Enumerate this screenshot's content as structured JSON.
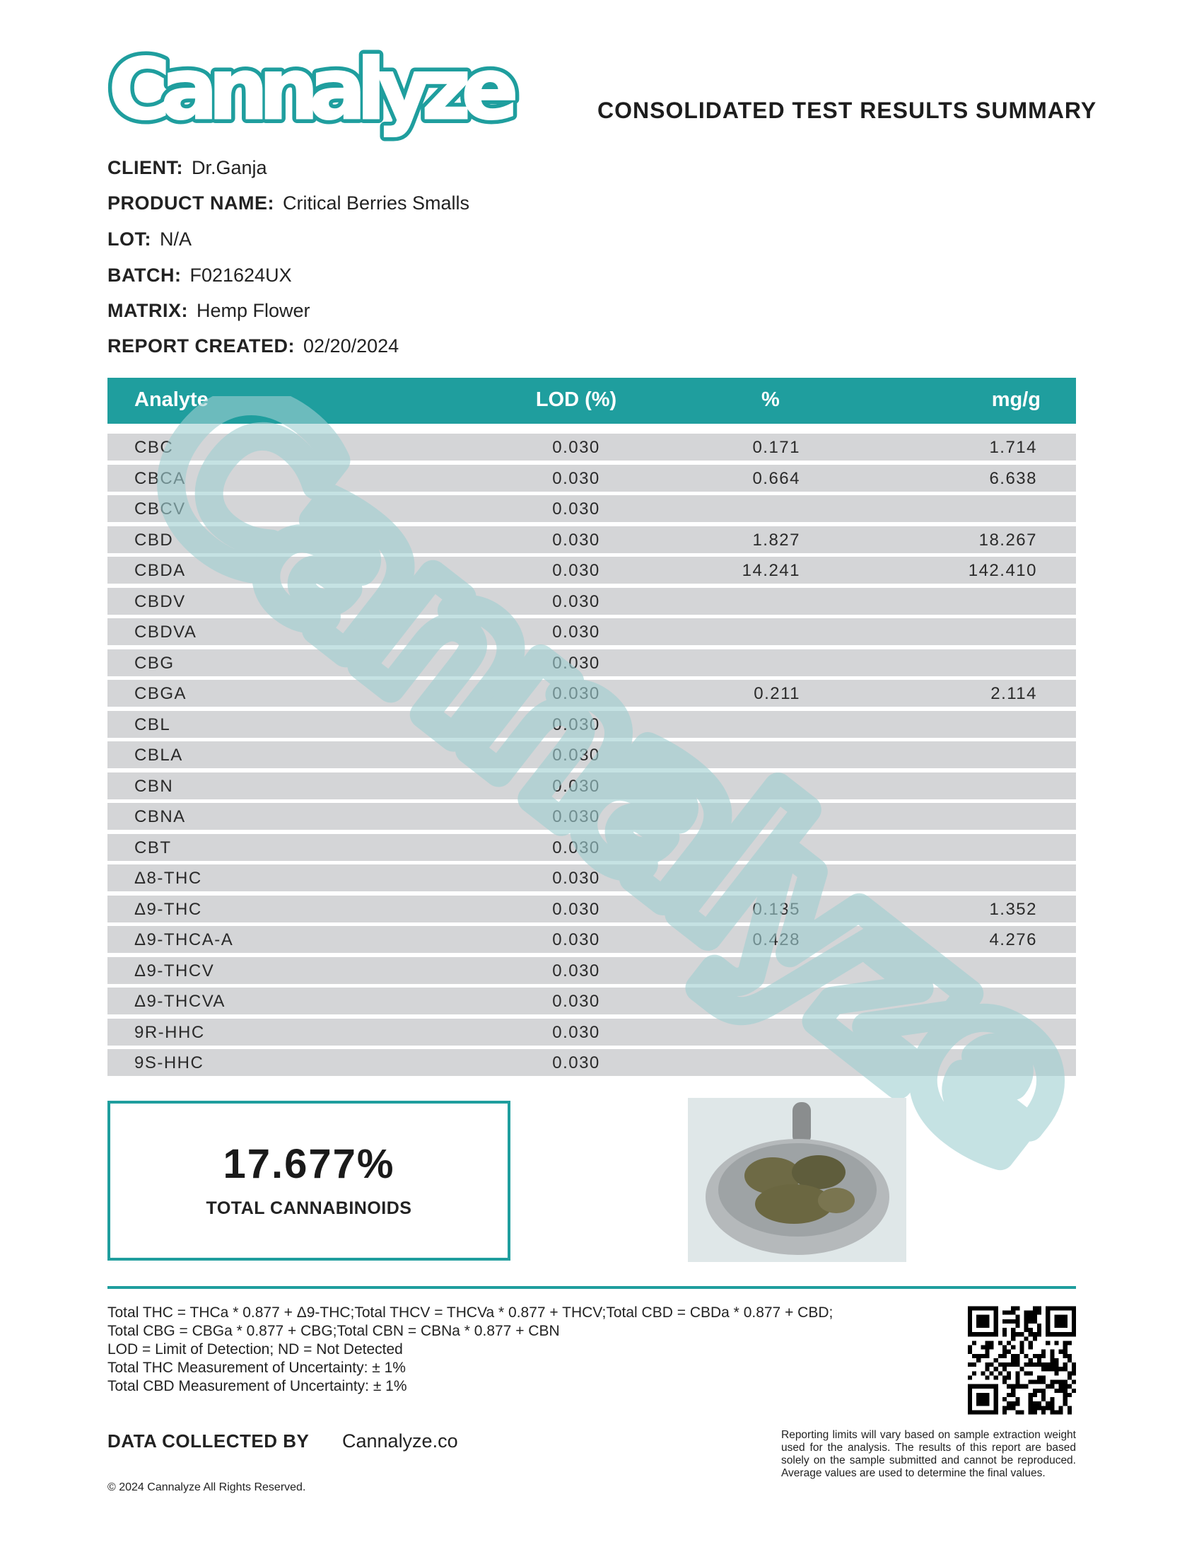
{
  "header": {
    "logo_text": "Cannalyze",
    "title": "CONSOLIDATED TEST RESULTS SUMMARY"
  },
  "meta": [
    {
      "label": "CLIENT:",
      "value": "Dr.Ganja"
    },
    {
      "label": "PRODUCT NAME:",
      "value": "Critical Berries Smalls"
    },
    {
      "label": "LOT:",
      "value": "N/A"
    },
    {
      "label": "BATCH:",
      "value": "F021624UX"
    },
    {
      "label": "MATRIX:",
      "value": "Hemp Flower"
    },
    {
      "label": "REPORT CREATED:",
      "value": "02/20/2024"
    }
  ],
  "table": {
    "columns": [
      "Analyte",
      "LOD (%)",
      "%",
      "mg/g"
    ],
    "rows": [
      {
        "analyte": "CBC",
        "lod": "0.030",
        "pct": "0.171",
        "mgg": "1.714"
      },
      {
        "analyte": "CBCA",
        "lod": "0.030",
        "pct": "0.664",
        "mgg": "6.638"
      },
      {
        "analyte": "CBCV",
        "lod": "0.030",
        "pct": "",
        "mgg": ""
      },
      {
        "analyte": "CBD",
        "lod": "0.030",
        "pct": "1.827",
        "mgg": "18.267"
      },
      {
        "analyte": "CBDA",
        "lod": "0.030",
        "pct": "14.241",
        "mgg": "142.410"
      },
      {
        "analyte": "CBDV",
        "lod": "0.030",
        "pct": "",
        "mgg": ""
      },
      {
        "analyte": "CBDVA",
        "lod": "0.030",
        "pct": "",
        "mgg": ""
      },
      {
        "analyte": "CBG",
        "lod": "0.030",
        "pct": "",
        "mgg": ""
      },
      {
        "analyte": "CBGA",
        "lod": "0.030",
        "pct": "0.211",
        "mgg": "2.114"
      },
      {
        "analyte": "CBL",
        "lod": "0.030",
        "pct": "",
        "mgg": ""
      },
      {
        "analyte": "CBLA",
        "lod": "0.030",
        "pct": "",
        "mgg": ""
      },
      {
        "analyte": "CBN",
        "lod": "0.030",
        "pct": "",
        "mgg": ""
      },
      {
        "analyte": "CBNA",
        "lod": "0.030",
        "pct": "",
        "mgg": ""
      },
      {
        "analyte": "CBT",
        "lod": "0.030",
        "pct": "",
        "mgg": ""
      },
      {
        "analyte": "Δ8-THC",
        "lod": "0.030",
        "pct": "",
        "mgg": ""
      },
      {
        "analyte": "Δ9-THC",
        "lod": "0.030",
        "pct": "0.135",
        "mgg": "1.352"
      },
      {
        "analyte": "Δ9-THCA-A",
        "lod": "0.030",
        "pct": "0.428",
        "mgg": "4.276"
      },
      {
        "analyte": "Δ9-THCV",
        "lod": "0.030",
        "pct": "",
        "mgg": ""
      },
      {
        "analyte": "Δ9-THCVA",
        "lod": "0.030",
        "pct": "",
        "mgg": ""
      },
      {
        "analyte": "9R-HHC",
        "lod": "0.030",
        "pct": "",
        "mgg": ""
      },
      {
        "analyte": "9S-HHC",
        "lod": "0.030",
        "pct": "",
        "mgg": ""
      }
    ]
  },
  "total": {
    "value": "17.677%",
    "label": "TOTAL CANNABINOIDS"
  },
  "footnotes": [
    "Total THC = THCa * 0.877 + Δ9-THC;Total THCV = THCVa * 0.877 + THCV;Total CBD = CBDa * 0.877 + CBD;",
    "Total CBG = CBGa * 0.877 + CBG;Total CBN = CBNa * 0.877 + CBN",
    "LOD = Limit of Detection; ND = Not Detected",
    "Total THC Measurement of Uncertainty: ± 1%",
    "Total CBD Measurement of Uncertainty: ± 1%"
  ],
  "footer": {
    "data_collected_label": "DATA COLLECTED BY",
    "data_collected_value": "Cannalyze.co",
    "copyright": "© 2024 Cannalyze All Rights Reserved.",
    "disclaimer": "Reporting limits will vary based on sample extraction weight used for the analysis. The results of this report are based solely on the sample submitted and cannot be reproduced. Average values are used to determine the final values."
  },
  "colors": {
    "brand": "#1f9e9e",
    "row_bg": "#d4d5d7",
    "watermark": "#9fcfd2"
  }
}
